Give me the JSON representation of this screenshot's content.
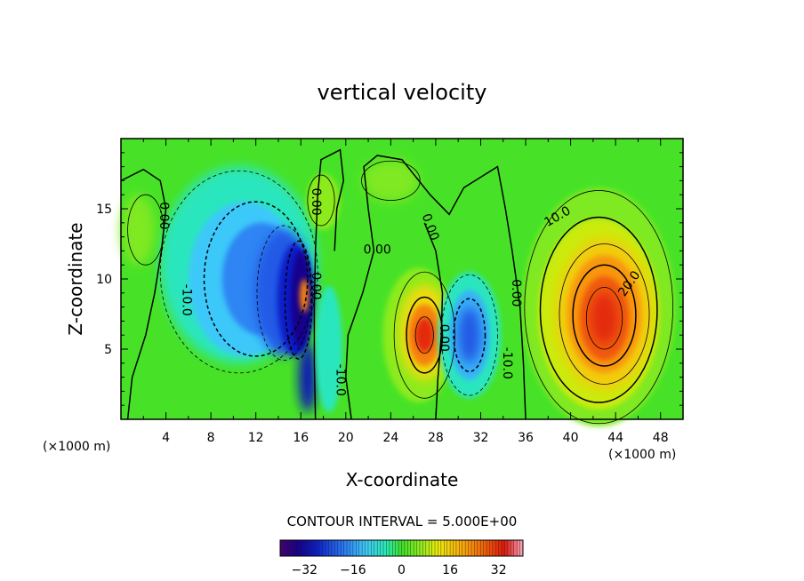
{
  "chart_data": {
    "type": "heatmap",
    "title": "vertical velocity",
    "xlabel": "X-coordinate",
    "ylabel": "Z-coordinate",
    "x_unit_left": "(×1000 m)",
    "x_unit_right": "(×1000 m)",
    "xlim": [
      0,
      50
    ],
    "ylim": [
      0,
      20
    ],
    "x_ticks": [
      "4",
      "8",
      "12",
      "16",
      "20",
      "24",
      "28",
      "32",
      "36",
      "40",
      "44",
      "48"
    ],
    "y_ticks": [
      "5",
      "10",
      "15"
    ],
    "contour_interval_text": "CONTOUR INTERVAL = 5.000E+00",
    "colorbar": {
      "min": -40,
      "max": 40,
      "tick_labels": [
        "−32",
        "−16",
        "0",
        "16",
        "32"
      ],
      "tick_values": [
        -32,
        -16,
        0,
        16,
        32
      ]
    },
    "contour_labels": [
      {
        "text": "0.00",
        "x": 3.5,
        "z": 14.5,
        "angle": 90
      },
      {
        "text": "0.00",
        "x": 17.0,
        "z": 15.5,
        "angle": 90
      },
      {
        "text": "0.00",
        "x": 17.0,
        "z": 9.5,
        "angle": 90
      },
      {
        "text": "0.00",
        "x": 22.8,
        "z": 11.8,
        "angle": 0
      },
      {
        "text": "0.00",
        "x": 27.2,
        "z": 13.6,
        "angle": 70
      },
      {
        "text": "0.00",
        "x": 34.8,
        "z": 9.0,
        "angle": 90
      },
      {
        "text": "0.00",
        "x": 28.4,
        "z": 5.8,
        "angle": 90
      },
      {
        "text": "-10.0",
        "x": 5.5,
        "z": 8.5,
        "angle": 90
      },
      {
        "text": "-10.0",
        "x": 19.2,
        "z": 2.8,
        "angle": 90
      },
      {
        "text": "-10.0",
        "x": 34.0,
        "z": 4.0,
        "angle": 90
      },
      {
        "text": "10.0",
        "x": 39.0,
        "z": 14.2,
        "angle": -30
      },
      {
        "text": "20.0",
        "x": 45.5,
        "z": 9.5,
        "angle": -55
      }
    ],
    "features": [
      {
        "kind": "updraft",
        "x": 42.5,
        "z": 7,
        "peak": 28
      },
      {
        "kind": "updraft",
        "x": 27,
        "z": 6,
        "peak": 34
      },
      {
        "kind": "downdraft",
        "x": 31,
        "z": 6,
        "peak": -26
      },
      {
        "kind": "downdraft",
        "x": 16,
        "z": 8,
        "peak": -38
      },
      {
        "kind": "downdraft",
        "x": 11,
        "z": 10,
        "peak": -18
      },
      {
        "kind": "updraft",
        "x": 16.3,
        "z": 8.5,
        "peak": 22
      }
    ],
    "grid": false
  }
}
